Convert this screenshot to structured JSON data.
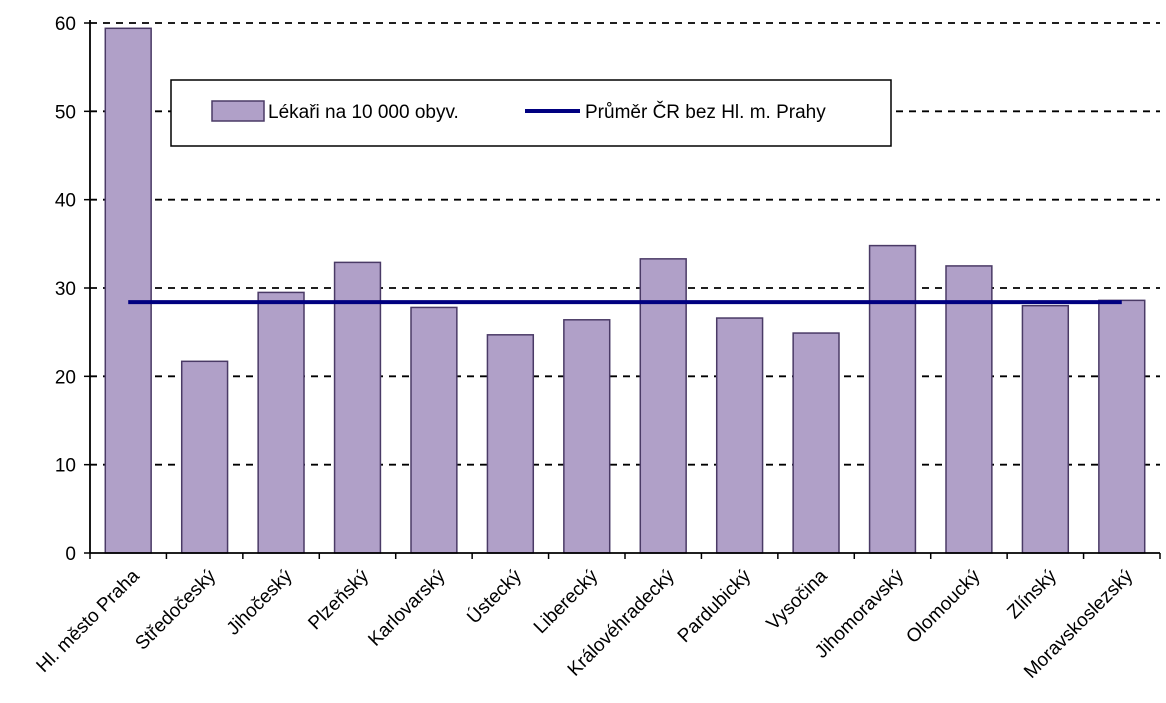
{
  "chart_data": {
    "type": "bar",
    "title": "",
    "xlabel": "",
    "ylabel": "",
    "ylim": [
      0,
      60
    ],
    "yticks": [
      0,
      10,
      20,
      30,
      40,
      50,
      60
    ],
    "grid": "horizontal-dashed",
    "legend_placement": "top-center",
    "categories": [
      "Hl. město Praha",
      "Středočeský",
      "Jihočeský",
      "Plzeňský",
      "Karlovarský",
      "Ústecký",
      "Liberecký",
      "Královéhradecký",
      "Pardubický",
      "Vysočina",
      "Jihomoravský",
      "Olomoucký",
      "Zlínský",
      "Moravskoslezský"
    ],
    "series": [
      {
        "name": "Lékaři na 10 000 obyv.",
        "kind": "bar",
        "color": "#b0a0c8",
        "values": [
          59.4,
          21.7,
          29.5,
          32.9,
          27.8,
          24.7,
          26.4,
          33.3,
          26.6,
          24.9,
          34.8,
          32.5,
          28.0,
          28.6
        ]
      },
      {
        "name": "Průměr ČR bez Hl. m. Prahy",
        "kind": "line",
        "color": "#000080",
        "value": 28.4
      }
    ]
  }
}
